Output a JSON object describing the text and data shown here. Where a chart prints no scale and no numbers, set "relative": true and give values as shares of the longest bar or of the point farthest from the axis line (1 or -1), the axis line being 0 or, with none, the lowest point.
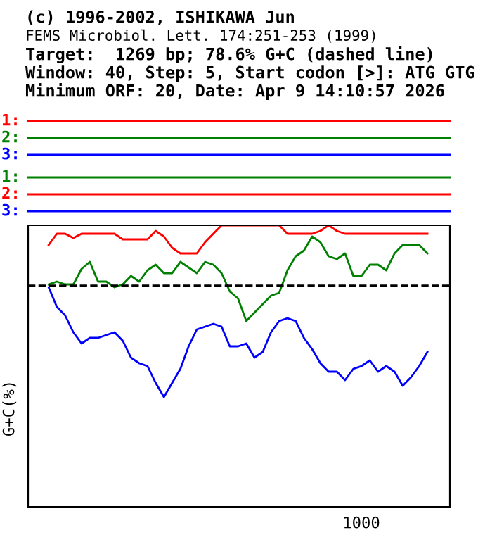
{
  "chart_data": {
    "type": "line",
    "title": "(c) 1996-2002, ISHIKAWA Jun",
    "subtitle": "FEMS Microbiol. Lett. 174:251-253 (1999)",
    "annotations": [
      "Target:  1269 bp; 78.6% G+C (dashed line)",
      "Window: 40, Step: 5, Start codon [>]: ATG GTG",
      "Minimum ORF: 20, Date: Apr 9 14:10:57 2026",
      "1:",
      "2:",
      "3:",
      "1:",
      "2:",
      "3:",
      "1000"
    ],
    "ylabel": "G+C(%)",
    "relative": true,
    "categories": [
      null,
      null,
      null,
      null,
      null,
      null,
      null,
      null,
      null,
      null,
      null,
      null,
      null,
      null,
      null,
      null,
      null,
      null,
      null,
      null,
      null,
      null,
      null,
      null,
      null,
      null,
      null,
      null,
      null,
      null,
      null,
      null,
      null,
      null,
      null,
      null,
      null,
      null,
      null,
      null,
      null,
      null,
      null,
      null,
      null,
      null,
      null
    ],
    "ref_lines": [
      {
        "axis": "y",
        "value": 0.786,
        "color": "#000000",
        "line_style": "dashed"
      }
    ],
    "series": [
      {
        "color": "#ff0000",
        "values": [
          0.93,
          0.97,
          0.97,
          0.955,
          0.97,
          0.97,
          0.97,
          0.97,
          0.97,
          0.95,
          0.95,
          0.95,
          0.95,
          0.98,
          0.96,
          0.92,
          0.9,
          0.9,
          0.9,
          0.94,
          0.97,
          1,
          1,
          1,
          1,
          1,
          1,
          1,
          1,
          0.97,
          0.97,
          0.97,
          0.97,
          0.98,
          1,
          0.98,
          0.97,
          0.97,
          0.97,
          0.97,
          0.97,
          0.97,
          0.97,
          0.97,
          0.97,
          0.97,
          0.97
        ]
      },
      {
        "color": "#008000",
        "values": [
          0.79,
          0.8,
          0.79,
          0.79,
          0.845,
          0.87,
          0.8,
          0.8,
          0.78,
          0.79,
          0.82,
          0.8,
          0.84,
          0.86,
          0.83,
          0.83,
          0.87,
          0.85,
          0.83,
          0.87,
          0.86,
          0.83,
          0.765,
          0.74,
          0.66,
          0.69,
          0.72,
          0.75,
          0.76,
          0.84,
          0.89,
          0.91,
          0.96,
          0.94,
          0.89,
          0.88,
          0.9,
          0.82,
          0.82,
          0.86,
          0.86,
          0.84,
          0.9,
          0.93,
          0.93,
          0.93,
          0.9
        ]
      },
      {
        "color": "#0000ff",
        "values": [
          0.78,
          0.71,
          0.68,
          0.62,
          0.58,
          0.6,
          0.6,
          0.61,
          0.62,
          0.59,
          0.53,
          0.51,
          0.5,
          0.44,
          0.39,
          0.44,
          0.49,
          0.57,
          0.63,
          0.64,
          0.65,
          0.64,
          0.57,
          0.57,
          0.58,
          0.53,
          0.55,
          0.62,
          0.66,
          0.67,
          0.66,
          0.6,
          0.56,
          0.51,
          0.48,
          0.48,
          0.45,
          0.49,
          0.5,
          0.52,
          0.48,
          0.5,
          0.48,
          0.43,
          0.46,
          0.5,
          0.55
        ]
      }
    ]
  }
}
